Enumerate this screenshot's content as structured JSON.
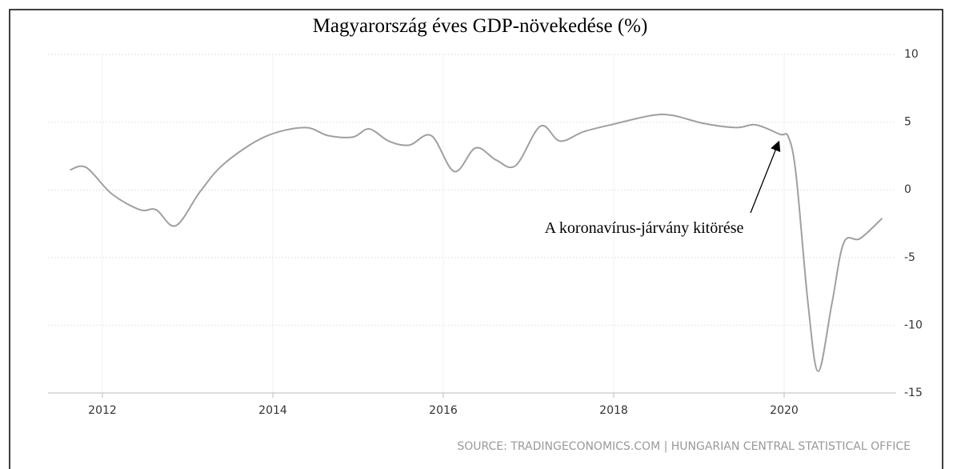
{
  "chart_data": {
    "type": "line",
    "title": "Magyarország éves GDP-növekedése (%)",
    "annotation": "A koronavírus-járvány kitörése",
    "source": "SOURCE: TRADINGECONOMICS.COM | HUNGARIAN CENTRAL STATISTICAL OFFICE",
    "x": [
      2011.62,
      2011.81,
      2012.11,
      2012.44,
      2012.63,
      2012.86,
      2013.15,
      2013.43,
      2013.9,
      2014.37,
      2014.65,
      2014.94,
      2015.13,
      2015.36,
      2015.6,
      2015.86,
      2016.13,
      2016.38,
      2016.62,
      2016.85,
      2017.14,
      2017.37,
      2017.65,
      2018.03,
      2018.45,
      2018.69,
      2019.06,
      2019.44,
      2019.67,
      2019.95,
      2020.05,
      2020.14,
      2020.28,
      2020.4,
      2020.56,
      2020.7,
      2020.89,
      2021.15
    ],
    "series": [
      {
        "name": "GDP",
        "color": "#a0a0a0",
        "values": [
          1.47,
          1.65,
          -0.3,
          -1.47,
          -1.47,
          -2.65,
          -0.1,
          1.94,
          3.9,
          4.6,
          4.0,
          3.9,
          4.5,
          3.6,
          3.3,
          4.0,
          1.35,
          3.1,
          2.2,
          1.8,
          4.7,
          3.6,
          4.3,
          4.9,
          5.5,
          5.5,
          4.9,
          4.6,
          4.8,
          4.1,
          3.9,
          1.1,
          -8.4,
          -13.4,
          -8.4,
          -3.9,
          -3.6,
          -2.1
        ]
      }
    ],
    "xlim": [
      2011.4,
      2021.3
    ],
    "xticks": [
      2012,
      2014,
      2016,
      2018,
      2020
    ],
    "ylim": [
      -15,
      10
    ],
    "yticks": [
      -15,
      -10,
      -5,
      0,
      5,
      10
    ],
    "grid": true
  }
}
